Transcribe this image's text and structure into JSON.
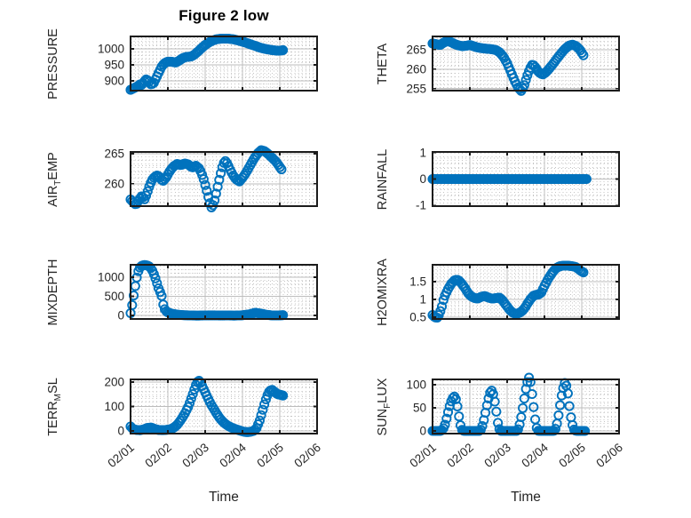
{
  "figure": {
    "title": "Figure 2 low",
    "xlabel": "Time",
    "marker_color": "#0072BD",
    "text_color": "#262626",
    "axis_color": "#1c1c1c",
    "major_grid_color": "#bdbdbd",
    "minor_grid_color": "#c4c4c4",
    "xtick_labels": [
      "02/01",
      "02/02",
      "02/03",
      "02/04",
      "02/05",
      "02/06"
    ],
    "xlim_days": [
      0,
      5
    ],
    "sample_interval_days": 0.0417,
    "grid": "on",
    "minor_grid": "dotted"
  },
  "chart_data": [
    {
      "type": "scatter",
      "name": "pressure",
      "row": 0,
      "col": "left",
      "ylabel": {
        "pre": "PRESSURE",
        "sub": "",
        "post": ""
      },
      "yticks": [
        900,
        950,
        1000
      ],
      "ylim": [
        869.5,
        1038.9
      ],
      "points": [
        [
          0,
          872
        ],
        [
          0.1,
          878
        ],
        [
          0.2,
          884
        ],
        [
          0.25,
          889
        ],
        [
          0.3,
          887
        ],
        [
          0.35,
          896
        ],
        [
          0.42,
          905
        ],
        [
          0.5,
          898
        ],
        [
          0.55,
          888
        ],
        [
          0.62,
          893
        ],
        [
          0.7,
          912
        ],
        [
          0.78,
          932
        ],
        [
          0.85,
          948
        ],
        [
          0.92,
          956
        ],
        [
          1.0,
          960
        ],
        [
          1.1,
          960
        ],
        [
          1.2,
          957
        ],
        [
          1.3,
          963
        ],
        [
          1.4,
          971
        ],
        [
          1.5,
          975
        ],
        [
          1.62,
          976
        ],
        [
          1.7,
          981
        ],
        [
          1.8,
          991
        ],
        [
          1.9,
          1002
        ],
        [
          2.0,
          1012
        ],
        [
          2.1,
          1020
        ],
        [
          2.2,
          1026
        ],
        [
          2.3,
          1030
        ],
        [
          2.45,
          1032
        ],
        [
          2.6,
          1032
        ],
        [
          2.75,
          1030
        ],
        [
          2.9,
          1026
        ],
        [
          3.05,
          1021
        ],
        [
          3.2,
          1015
        ],
        [
          3.35,
          1009
        ],
        [
          3.5,
          1003
        ],
        [
          3.65,
          999
        ],
        [
          3.8,
          996
        ],
        [
          3.95,
          994
        ],
        [
          4.05,
          995
        ],
        [
          4.12,
          997
        ]
      ]
    },
    {
      "type": "scatter",
      "name": "theta",
      "row": 0,
      "col": "right",
      "ylabel": {
        "pre": "THETA",
        "sub": "",
        "post": ""
      },
      "yticks": [
        255,
        260,
        265
      ],
      "ylim": [
        254.5,
        268.4
      ],
      "points": [
        [
          0,
          266.6
        ],
        [
          0.1,
          266.4
        ],
        [
          0.2,
          266.2
        ],
        [
          0.3,
          266.8
        ],
        [
          0.4,
          267.3
        ],
        [
          0.5,
          266.9
        ],
        [
          0.6,
          266.4
        ],
        [
          0.7,
          266.1
        ],
        [
          0.8,
          265.9
        ],
        [
          0.9,
          266.0
        ],
        [
          1.0,
          266.2
        ],
        [
          1.1,
          265.9
        ],
        [
          1.2,
          265.6
        ],
        [
          1.3,
          265.4
        ],
        [
          1.4,
          265.3
        ],
        [
          1.5,
          265.2
        ],
        [
          1.6,
          265.1
        ],
        [
          1.7,
          264.9
        ],
        [
          1.8,
          264.3
        ],
        [
          1.9,
          263.2
        ],
        [
          2.0,
          261.5
        ],
        [
          2.1,
          259.3
        ],
        [
          2.2,
          257.0
        ],
        [
          2.3,
          255.2
        ],
        [
          2.38,
          254.4
        ],
        [
          2.45,
          255.6
        ],
        [
          2.52,
          257.8
        ],
        [
          2.6,
          259.9
        ],
        [
          2.68,
          261.3
        ],
        [
          2.75,
          260.6
        ],
        [
          2.85,
          259.2
        ],
        [
          2.95,
          258.6
        ],
        [
          3.05,
          259.3
        ],
        [
          3.15,
          260.4
        ],
        [
          3.25,
          261.6
        ],
        [
          3.35,
          262.9
        ],
        [
          3.45,
          264.1
        ],
        [
          3.55,
          265.2
        ],
        [
          3.65,
          266.0
        ],
        [
          3.75,
          266.3
        ],
        [
          3.85,
          265.9
        ],
        [
          3.95,
          265.0
        ],
        [
          4.02,
          263.9
        ],
        [
          4.08,
          263.1
        ]
      ]
    },
    {
      "type": "scatter",
      "name": "air-temp",
      "row": 1,
      "col": "left",
      "ylabel": {
        "pre": "AIR",
        "sub": "T",
        "post": "EMP"
      },
      "yticks": [
        260,
        265
      ],
      "ylim": [
        256.3,
        265.3
      ],
      "points": [
        [
          0,
          257.4
        ],
        [
          0.08,
          256.9
        ],
        [
          0.15,
          256.5
        ],
        [
          0.22,
          257.3
        ],
        [
          0.3,
          258.0
        ],
        [
          0.38,
          257.4
        ],
        [
          0.45,
          258.6
        ],
        [
          0.52,
          259.9
        ],
        [
          0.6,
          260.9
        ],
        [
          0.7,
          261.4
        ],
        [
          0.78,
          261.2
        ],
        [
          0.86,
          260.4
        ],
        [
          0.95,
          261.0
        ],
        [
          1.05,
          262.1
        ],
        [
          1.15,
          262.9
        ],
        [
          1.25,
          263.3
        ],
        [
          1.35,
          263.1
        ],
        [
          1.45,
          263.4
        ],
        [
          1.55,
          263.2
        ],
        [
          1.65,
          262.7
        ],
        [
          1.75,
          263.0
        ],
        [
          1.85,
          262.5
        ],
        [
          1.95,
          261.0
        ],
        [
          2.05,
          258.7
        ],
        [
          2.12,
          256.9
        ],
        [
          2.18,
          255.9
        ],
        [
          2.25,
          257.2
        ],
        [
          2.32,
          259.1
        ],
        [
          2.4,
          261.3
        ],
        [
          2.47,
          263.0
        ],
        [
          2.53,
          263.9
        ],
        [
          2.6,
          263.3
        ],
        [
          2.68,
          262.2
        ],
        [
          2.76,
          261.3
        ],
        [
          2.84,
          260.7
        ],
        [
          2.92,
          260.4
        ],
        [
          3.0,
          261.0
        ],
        [
          3.1,
          261.9
        ],
        [
          3.2,
          263.0
        ],
        [
          3.3,
          264.1
        ],
        [
          3.4,
          265.0
        ],
        [
          3.5,
          265.6
        ],
        [
          3.6,
          265.4
        ],
        [
          3.7,
          264.9
        ],
        [
          3.8,
          264.3
        ],
        [
          3.9,
          263.7
        ],
        [
          4.0,
          262.8
        ],
        [
          4.08,
          262.1
        ]
      ]
    },
    {
      "type": "scatter",
      "name": "rainfall",
      "row": 1,
      "col": "right",
      "ylabel": {
        "pre": "RAINFALL",
        "sub": "",
        "post": ""
      },
      "yticks": [
        -1,
        0,
        1
      ],
      "ylim": [
        -1.03,
        1.03
      ],
      "points": [
        [
          0,
          0
        ],
        [
          4.15,
          0
        ]
      ]
    },
    {
      "type": "scatter",
      "name": "mixdepth",
      "row": 2,
      "col": "left",
      "ylabel": {
        "pre": "MIXDEPTH",
        "sub": "",
        "post": ""
      },
      "yticks": [
        0,
        500,
        1000
      ],
      "ylim": [
        -93,
        1325
      ],
      "points": [
        [
          0,
          60
        ],
        [
          0.04,
          260
        ],
        [
          0.08,
          500
        ],
        [
          0.12,
          740
        ],
        [
          0.16,
          960
        ],
        [
          0.2,
          1140
        ],
        [
          0.25,
          1250
        ],
        [
          0.3,
          1300
        ],
        [
          0.38,
          1320
        ],
        [
          0.46,
          1300
        ],
        [
          0.52,
          1270
        ],
        [
          0.58,
          1180
        ],
        [
          0.64,
          1050
        ],
        [
          0.7,
          870
        ],
        [
          0.76,
          680
        ],
        [
          0.83,
          530
        ],
        [
          0.88,
          260
        ],
        [
          0.93,
          130
        ],
        [
          1.0,
          80
        ],
        [
          1.1,
          45
        ],
        [
          1.25,
          20
        ],
        [
          1.4,
          8
        ],
        [
          1.6,
          0
        ],
        [
          1.8,
          -5
        ],
        [
          2.0,
          0
        ],
        [
          2.2,
          3
        ],
        [
          2.4,
          -3
        ],
        [
          2.6,
          0
        ],
        [
          2.8,
          -5
        ],
        [
          3.0,
          5
        ],
        [
          3.2,
          30
        ],
        [
          3.35,
          70
        ],
        [
          3.5,
          45
        ],
        [
          3.65,
          15
        ],
        [
          3.8,
          0
        ],
        [
          3.95,
          0
        ],
        [
          4.1,
          8
        ]
      ]
    },
    {
      "type": "scatter",
      "name": "h2omixra",
      "row": 2,
      "col": "right",
      "ylabel": {
        "pre": "H2OMIXRA",
        "sub": "",
        "post": ""
      },
      "yticks": [
        0.5,
        1,
        1.5
      ],
      "ylim": [
        0.45,
        1.975
      ],
      "points": [
        [
          0,
          0.56
        ],
        [
          0.06,
          0.5
        ],
        [
          0.12,
          0.48
        ],
        [
          0.18,
          0.58
        ],
        [
          0.25,
          0.8
        ],
        [
          0.3,
          1.02
        ],
        [
          0.35,
          1.15
        ],
        [
          0.42,
          1.3
        ],
        [
          0.5,
          1.44
        ],
        [
          0.58,
          1.53
        ],
        [
          0.65,
          1.56
        ],
        [
          0.72,
          1.52
        ],
        [
          0.8,
          1.42
        ],
        [
          0.88,
          1.3
        ],
        [
          0.95,
          1.18
        ],
        [
          1.02,
          1.1
        ],
        [
          1.1,
          1.05
        ],
        [
          1.2,
          1.02
        ],
        [
          1.3,
          1.07
        ],
        [
          1.4,
          1.1
        ],
        [
          1.5,
          1.05
        ],
        [
          1.6,
          1.02
        ],
        [
          1.7,
          1.04
        ],
        [
          1.8,
          1.05
        ],
        [
          1.88,
          0.97
        ],
        [
          1.95,
          0.87
        ],
        [
          2.02,
          0.77
        ],
        [
          2.1,
          0.67
        ],
        [
          2.18,
          0.61
        ],
        [
          2.25,
          0.59
        ],
        [
          2.32,
          0.62
        ],
        [
          2.4,
          0.67
        ],
        [
          2.48,
          0.77
        ],
        [
          2.55,
          0.89
        ],
        [
          2.62,
          1.0
        ],
        [
          2.7,
          1.1
        ],
        [
          2.78,
          1.13
        ],
        [
          2.85,
          1.14
        ],
        [
          2.92,
          1.2
        ],
        [
          3.0,
          1.38
        ],
        [
          3.1,
          1.58
        ],
        [
          3.2,
          1.74
        ],
        [
          3.3,
          1.87
        ],
        [
          3.4,
          1.93
        ],
        [
          3.5,
          1.95
        ],
        [
          3.62,
          1.95
        ],
        [
          3.72,
          1.94
        ],
        [
          3.82,
          1.92
        ],
        [
          3.9,
          1.87
        ],
        [
          3.98,
          1.8
        ],
        [
          4.06,
          1.75
        ]
      ]
    },
    {
      "type": "scatter",
      "name": "terr-msl",
      "row": 3,
      "col": "left",
      "ylabel": {
        "pre": "TERR",
        "sub": "M",
        "post": "SL"
      },
      "yticks": [
        0,
        100,
        200
      ],
      "ylim": [
        -11,
        211
      ],
      "points": [
        [
          0,
          18
        ],
        [
          0.06,
          8
        ],
        [
          0.15,
          4
        ],
        [
          0.25,
          3
        ],
        [
          0.35,
          6
        ],
        [
          0.45,
          12
        ],
        [
          0.55,
          14
        ],
        [
          0.65,
          8
        ],
        [
          0.75,
          4
        ],
        [
          0.85,
          3
        ],
        [
          0.95,
          4
        ],
        [
          1.05,
          6
        ],
        [
          1.15,
          12
        ],
        [
          1.25,
          25
        ],
        [
          1.35,
          45
        ],
        [
          1.45,
          70
        ],
        [
          1.55,
          100
        ],
        [
          1.62,
          130
        ],
        [
          1.7,
          165
        ],
        [
          1.76,
          192
        ],
        [
          1.82,
          208
        ],
        [
          1.88,
          196
        ],
        [
          1.94,
          178
        ],
        [
          2.0,
          158
        ],
        [
          2.08,
          132
        ],
        [
          2.16,
          108
        ],
        [
          2.24,
          88
        ],
        [
          2.32,
          68
        ],
        [
          2.4,
          50
        ],
        [
          2.5,
          34
        ],
        [
          2.6,
          22
        ],
        [
          2.7,
          14
        ],
        [
          2.8,
          8
        ],
        [
          2.9,
          3
        ],
        [
          3.0,
          -2
        ],
        [
          3.1,
          -5
        ],
        [
          3.2,
          -4
        ],
        [
          3.3,
          0
        ],
        [
          3.38,
          12
        ],
        [
          3.46,
          42
        ],
        [
          3.54,
          84
        ],
        [
          3.62,
          126
        ],
        [
          3.7,
          158
        ],
        [
          3.78,
          170
        ],
        [
          3.86,
          160
        ],
        [
          3.94,
          150
        ],
        [
          4.02,
          148
        ],
        [
          4.1,
          144
        ]
      ]
    },
    {
      "type": "scatter",
      "name": "sun-flux",
      "row": 3,
      "col": "right",
      "ylabel": {
        "pre": "SUN",
        "sub": "F",
        "post": "LUX"
      },
      "yticks": [
        0,
        50,
        100
      ],
      "ylim": [
        -5.8,
        111.5
      ],
      "points": [
        [
          0,
          0
        ],
        [
          0.2,
          0
        ],
        [
          0.27,
          2
        ],
        [
          0.33,
          12
        ],
        [
          0.38,
          28
        ],
        [
          0.43,
          45
        ],
        [
          0.48,
          60
        ],
        [
          0.53,
          70
        ],
        [
          0.58,
          75
        ],
        [
          0.63,
          68
        ],
        [
          0.68,
          48
        ],
        [
          0.72,
          25
        ],
        [
          0.76,
          8
        ],
        [
          0.8,
          1
        ],
        [
          0.85,
          0
        ],
        [
          1.25,
          0
        ],
        [
          1.3,
          3
        ],
        [
          1.35,
          14
        ],
        [
          1.4,
          32
        ],
        [
          1.45,
          52
        ],
        [
          1.5,
          70
        ],
        [
          1.55,
          85
        ],
        [
          1.6,
          88
        ],
        [
          1.65,
          72
        ],
        [
          1.7,
          48
        ],
        [
          1.74,
          22
        ],
        [
          1.78,
          6
        ],
        [
          1.82,
          0
        ],
        [
          2.25,
          0
        ],
        [
          2.3,
          4
        ],
        [
          2.35,
          18
        ],
        [
          2.4,
          40
        ],
        [
          2.45,
          65
        ],
        [
          2.5,
          90
        ],
        [
          2.55,
          108
        ],
        [
          2.6,
          118
        ],
        [
          2.64,
          100
        ],
        [
          2.68,
          72
        ],
        [
          2.72,
          45
        ],
        [
          2.76,
          20
        ],
        [
          2.8,
          4
        ],
        [
          2.84,
          0
        ],
        [
          3.25,
          0
        ],
        [
          3.3,
          5
        ],
        [
          3.35,
          20
        ],
        [
          3.4,
          45
        ],
        [
          3.45,
          72
        ],
        [
          3.5,
          92
        ],
        [
          3.55,
          105
        ],
        [
          3.6,
          95
        ],
        [
          3.65,
          70
        ],
        [
          3.68,
          45
        ],
        [
          3.72,
          25
        ],
        [
          3.76,
          10
        ],
        [
          3.8,
          2
        ],
        [
          3.85,
          0
        ],
        [
          4.12,
          0
        ]
      ]
    }
  ]
}
